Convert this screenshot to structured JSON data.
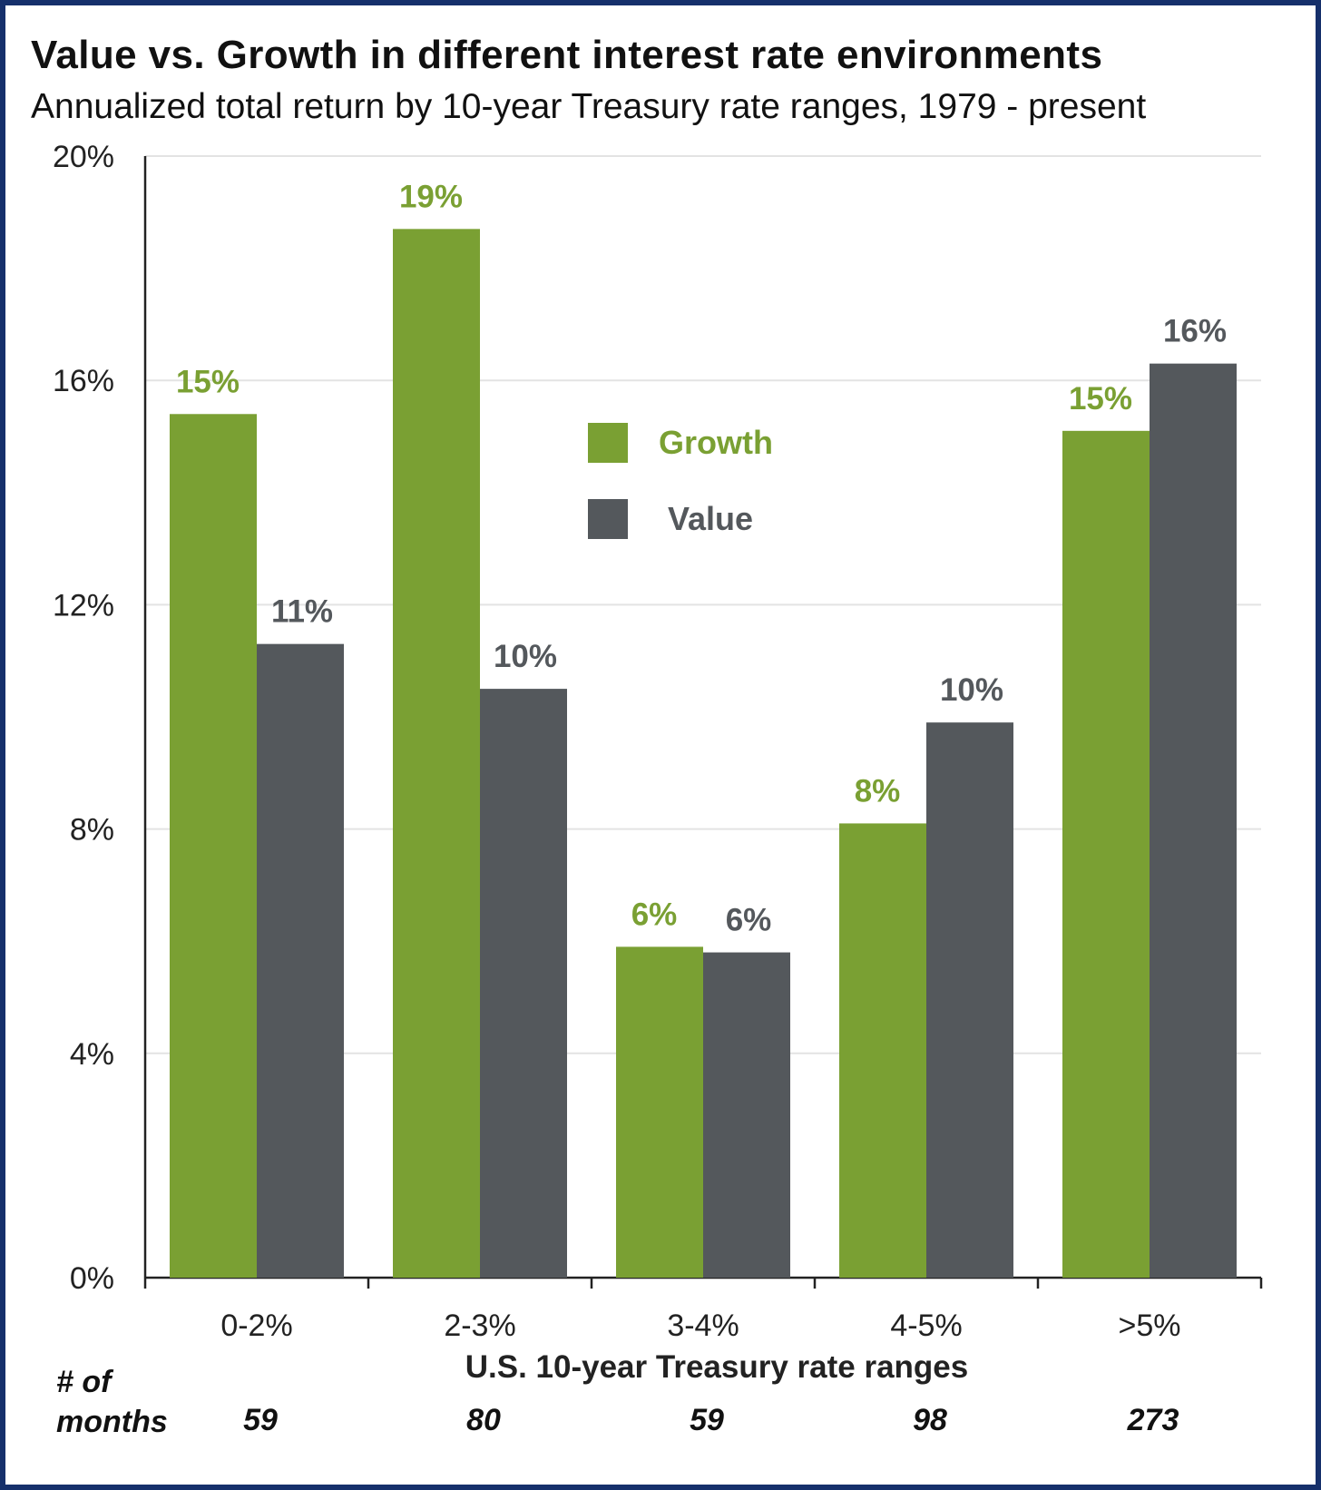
{
  "title": "Value vs. Growth in different interest rate environments",
  "subtitle": "Annualized total return by 10-year Treasury rate ranges, 1979 - present",
  "months_label_line1": "# of",
  "months_label_line2": "months",
  "months": [
    "59",
    "80",
    "59",
    "98",
    "273"
  ],
  "colors": {
    "growth": "#7aa033",
    "value": "#54585c",
    "border": "#16306b",
    "grid": "#e3e3e3"
  },
  "chart_data": {
    "type": "bar",
    "title": "Value vs. Growth in different interest rate environments",
    "subtitle": "Annualized total return by 10-year Treasury rate ranges, 1979 - present",
    "xlabel": "U.S. 10-year Treasury rate ranges",
    "ylabel": "",
    "categories": [
      "0-2%",
      "2-3%",
      "3-4%",
      "4-5%",
      ">5%"
    ],
    "ylim": [
      0,
      20
    ],
    "yticks": [
      "0%",
      "4%",
      "8%",
      "12%",
      "16%",
      "20%"
    ],
    "grid": true,
    "legend_position": "center",
    "series": [
      {
        "name": "Growth",
        "values": [
          15.4,
          18.7,
          5.9,
          8.1,
          15.1
        ],
        "labels": [
          "15%",
          "19%",
          "6%",
          "8%",
          "15%"
        ]
      },
      {
        "name": "Value",
        "values": [
          11.3,
          10.5,
          5.8,
          9.9,
          16.3
        ],
        "labels": [
          "11%",
          "10%",
          "6%",
          "10%",
          "16%"
        ]
      }
    ]
  }
}
